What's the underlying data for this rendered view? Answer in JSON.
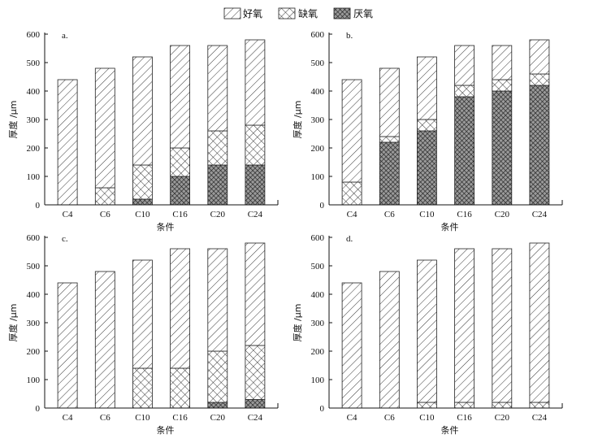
{
  "legend": [
    {
      "key": "aerobic",
      "label": "好氧",
      "pattern": "hatch"
    },
    {
      "key": "anoxic",
      "label": "缺氧",
      "pattern": "crosshatch"
    },
    {
      "key": "anaerobic",
      "label": "厌氧",
      "pattern": "dense"
    }
  ],
  "chart_data": [
    {
      "type": "bar",
      "stacked": true,
      "panel_label": "a.",
      "categories": [
        "C4",
        "C6",
        "C10",
        "C16",
        "C20",
        "C24"
      ],
      "xlabel": "条件",
      "ylabel": "厚度 /μm",
      "ylim": [
        0,
        600
      ],
      "yticks": [
        0,
        100,
        200,
        300,
        400,
        500,
        600
      ],
      "series": [
        {
          "name": "厌氧",
          "values": [
            0,
            0,
            20,
            100,
            140,
            140
          ]
        },
        {
          "name": "缺氧",
          "values": [
            0,
            60,
            120,
            100,
            120,
            140
          ]
        },
        {
          "name": "好氧",
          "values": [
            440,
            420,
            380,
            360,
            300,
            300
          ]
        }
      ]
    },
    {
      "type": "bar",
      "stacked": true,
      "panel_label": "b.",
      "categories": [
        "C4",
        "C6",
        "C10",
        "C16",
        "C20",
        "C24"
      ],
      "xlabel": "条件",
      "ylabel": "厚度 /μm",
      "ylim": [
        0,
        600
      ],
      "yticks": [
        0,
        100,
        200,
        300,
        400,
        500,
        600
      ],
      "series": [
        {
          "name": "厌氧",
          "values": [
            0,
            220,
            260,
            380,
            400,
            420
          ]
        },
        {
          "name": "缺氧",
          "values": [
            80,
            20,
            40,
            40,
            40,
            40
          ]
        },
        {
          "name": "好氧",
          "values": [
            360,
            240,
            220,
            140,
            120,
            120
          ]
        }
      ]
    },
    {
      "type": "bar",
      "stacked": true,
      "panel_label": "c.",
      "categories": [
        "C4",
        "C6",
        "C10",
        "C16",
        "C20",
        "C24"
      ],
      "xlabel": "条件",
      "ylabel": "厚度 /μm",
      "ylim": [
        0,
        600
      ],
      "yticks": [
        0,
        100,
        200,
        300,
        400,
        500,
        600
      ],
      "series": [
        {
          "name": "厌氧",
          "values": [
            0,
            0,
            0,
            0,
            20,
            30
          ]
        },
        {
          "name": "缺氧",
          "values": [
            0,
            0,
            140,
            140,
            180,
            190
          ]
        },
        {
          "name": "好氧",
          "values": [
            440,
            480,
            380,
            420,
            360,
            360
          ]
        }
      ]
    },
    {
      "type": "bar",
      "stacked": true,
      "panel_label": "d.",
      "categories": [
        "C4",
        "C6",
        "C10",
        "C16",
        "C20",
        "C24"
      ],
      "xlabel": "条件",
      "ylabel": "厚度 /μm",
      "ylim": [
        0,
        600
      ],
      "yticks": [
        0,
        100,
        200,
        300,
        400,
        500,
        600
      ],
      "series": [
        {
          "name": "厌氧",
          "values": [
            0,
            0,
            0,
            0,
            0,
            0
          ]
        },
        {
          "name": "缺氧",
          "values": [
            0,
            0,
            20,
            20,
            20,
            20
          ]
        },
        {
          "name": "好氧",
          "values": [
            440,
            480,
            500,
            540,
            540,
            560
          ]
        }
      ]
    }
  ]
}
